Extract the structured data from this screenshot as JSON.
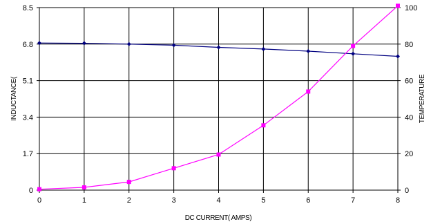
{
  "chart_data": {
    "type": "line",
    "title": "",
    "xlabel": "DC CURRENT( AMPS)",
    "ylabel_left": "INDUCTANCE(",
    "ylabel_right": "TEMPERATURE",
    "xlim": [
      0,
      8
    ],
    "ylim_left": [
      0,
      8.5
    ],
    "ylim_right": [
      0,
      100
    ],
    "x_ticks": [
      "0",
      "1",
      "2",
      "3",
      "4",
      "5",
      "6",
      "7",
      "8"
    ],
    "y_left_ticks": [
      "0",
      "1.7",
      "3.4",
      "5.1",
      "6.8",
      "8.5"
    ],
    "y_right_ticks": [
      "0",
      "20",
      "40",
      "60",
      "80",
      "100"
    ],
    "grid": true,
    "legend": "none",
    "series": [
      {
        "axis": "left",
        "marker": "diamond",
        "color": "#000080",
        "x": [
          0,
          1,
          2,
          3,
          4,
          5,
          6,
          7,
          8
        ],
        "y": [
          6.85,
          6.84,
          6.8,
          6.75,
          6.65,
          6.57,
          6.47,
          6.35,
          6.23
        ]
      },
      {
        "axis": "right",
        "marker": "square",
        "color": "#ff00ff",
        "x": [
          0,
          1,
          2,
          3,
          4,
          5,
          6,
          7,
          8
        ],
        "y": [
          0.5,
          1.5,
          4.5,
          12,
          19.5,
          35.5,
          54,
          79,
          101
        ]
      }
    ]
  }
}
